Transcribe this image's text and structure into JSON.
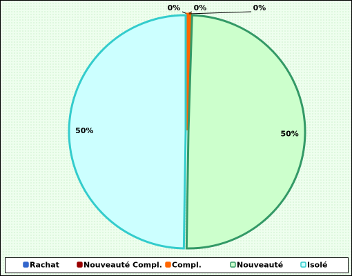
{
  "chart_data": {
    "type": "pie",
    "categories": [
      "Rachat",
      "Nouveauté Compl.",
      "Compl.",
      "Nouveauté",
      "Isolé"
    ],
    "values": [
      0,
      0,
      0.5,
      49.75,
      49.75
    ],
    "value_labels": [
      "0%",
      "0%",
      "0%",
      "50%",
      "50%"
    ],
    "colors": [
      "#3366cc",
      "#990000",
      "#ff6600",
      "#339966",
      "#33cccc"
    ],
    "fills": [
      "#3366cc",
      "#990000",
      "#ff6600",
      "#ccffcc",
      "#ccffff"
    ],
    "legend": "bottom"
  }
}
